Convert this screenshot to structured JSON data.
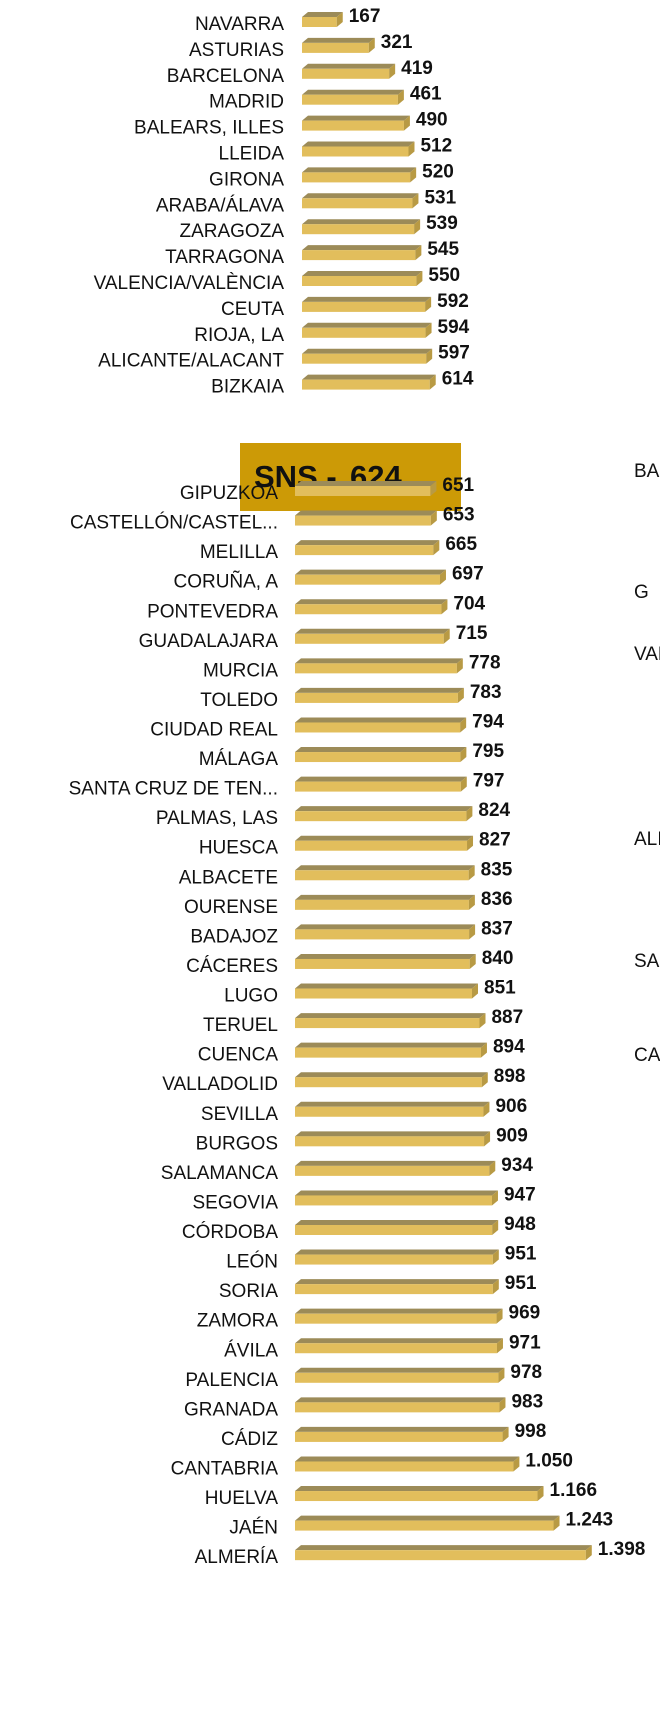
{
  "chart_data": [
    {
      "type": "bar",
      "orientation": "horizontal",
      "color": "#e2be5c",
      "categories": [
        "NAVARRA",
        "ASTURIAS",
        "BARCELONA",
        "MADRID",
        "BALEARS, ILLES",
        "LLEIDA",
        "GIRONA",
        "ARABA/ÁLAVA",
        "ZARAGOZA",
        "TARRAGONA",
        "VALENCIA/VALÈNCIA",
        "CEUTA",
        "RIOJA, LA",
        "ALICANTE/ALACANT",
        "BIZKAIA"
      ],
      "values": [
        167,
        321,
        419,
        461,
        490,
        512,
        520,
        531,
        539,
        545,
        550,
        592,
        594,
        597,
        614
      ],
      "reference": {
        "label": "SNS -",
        "value": 624,
        "color": "#cc9a06"
      }
    },
    {
      "type": "bar",
      "orientation": "horizontal",
      "color": "#e2be5c",
      "categories": [
        "GIPUZKOA",
        "CASTELLÓN/CASTEL...",
        "MELILLA",
        "CORUÑA, A",
        "PONTEVEDRA",
        "GUADALAJARA",
        "MURCIA",
        "TOLEDO",
        "CIUDAD REAL",
        "MÁLAGA",
        "SANTA CRUZ DE TEN...",
        "PALMAS, LAS",
        "HUESCA",
        "ALBACETE",
        "OURENSE",
        "BADAJOZ",
        "CÁCERES",
        "LUGO",
        "TERUEL",
        "CUENCA",
        "VALLADOLID",
        "SEVILLA",
        "BURGOS",
        "SALAMANCA",
        "SEGOVIA",
        "CÓRDOBA",
        "LEÓN",
        "SORIA",
        "ZAMORA",
        "ÁVILA",
        "PALENCIA",
        "GRANADA",
        "CÁDIZ",
        "CANTABRIA",
        "HUELVA",
        "JAÉN",
        "ALMERÍA"
      ],
      "values": [
        651,
        653,
        665,
        697,
        704,
        715,
        778,
        783,
        794,
        795,
        797,
        824,
        827,
        835,
        836,
        837,
        840,
        851,
        887,
        894,
        898,
        906,
        909,
        934,
        947,
        948,
        951,
        951,
        969,
        971,
        978,
        983,
        998,
        1050,
        1166,
        1243,
        1398
      ],
      "value_labels": [
        "651",
        "653",
        "665",
        "697",
        "704",
        "715",
        "778",
        "783",
        "794",
        "795",
        "797",
        "824",
        "827",
        "835",
        "836",
        "837",
        "840",
        "851",
        "887",
        "894",
        "898",
        "906",
        "909",
        "934",
        "947",
        "948",
        "951",
        "951",
        "969",
        "971",
        "978",
        "983",
        "998",
        "1.050",
        "1.166",
        "1.243",
        "1.398"
      ],
      "background_labels": [
        "BA",
        "G",
        "VALEN",
        "ALICA",
        "SANTA C",
        "CASTELL"
      ]
    }
  ]
}
